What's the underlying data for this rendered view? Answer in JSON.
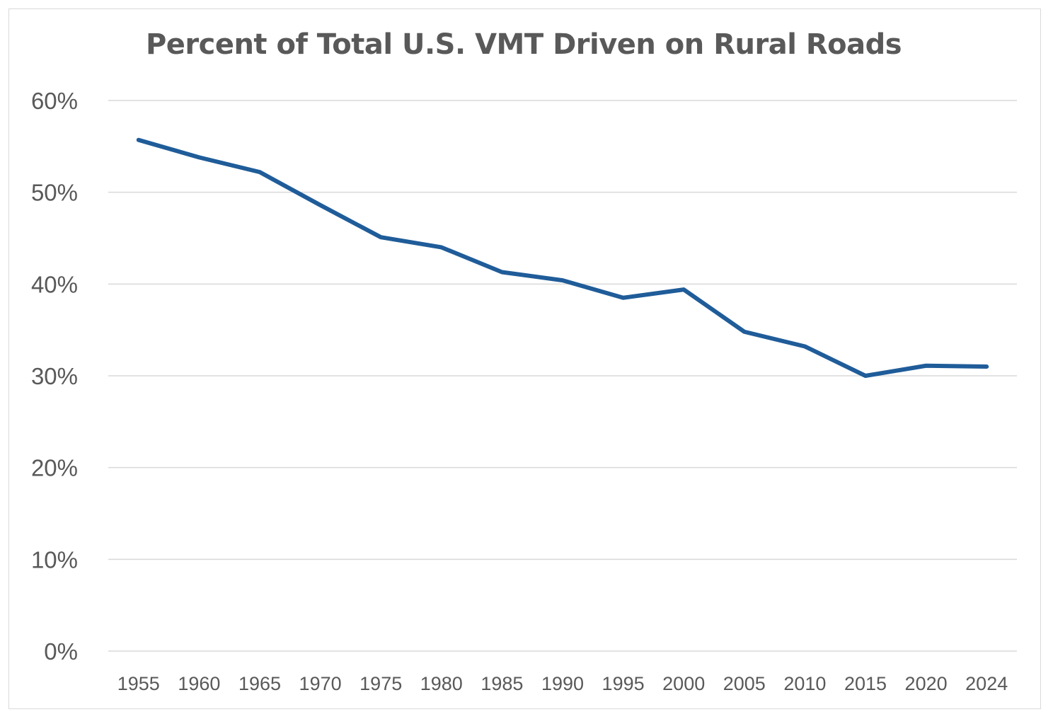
{
  "chart_data": {
    "type": "line",
    "title": "Percent of Total U.S. VMT Driven on Rural Roads",
    "xlabel": "",
    "ylabel": "",
    "categories": [
      "1955",
      "1960",
      "1965",
      "1970",
      "1975",
      "1980",
      "1985",
      "1990",
      "1995",
      "2000",
      "2005",
      "2010",
      "2015",
      "2020",
      "2024"
    ],
    "series": [
      {
        "values": [
          55.7,
          53.8,
          52.2,
          48.6,
          45.1,
          44.0,
          41.3,
          40.4,
          38.5,
          39.4,
          34.8,
          33.2,
          30.0,
          31.1,
          31.0
        ],
        "color": "#1F5C99"
      }
    ],
    "ylim": [
      0,
      60
    ],
    "yticks": [
      0,
      10,
      20,
      30,
      40,
      50,
      60
    ],
    "ytick_labels": [
      "0%",
      "10%",
      "20%",
      "30%",
      "40%",
      "50%",
      "60%"
    ],
    "grid": true,
    "legend": "none",
    "gridline_color": "#d9d9d9"
  }
}
